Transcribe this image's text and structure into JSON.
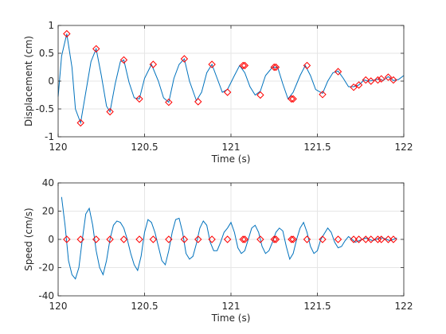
{
  "figure": {
    "background": "#ffffff"
  },
  "colors": {
    "signal": "#0072bd",
    "marker": "#ff0000",
    "grid": "#e6e6e6",
    "axis": "#262626"
  },
  "chart_data": [
    {
      "type": "line",
      "title": "",
      "xlabel": "Time (s)",
      "ylabel": "Displacement (cm)",
      "xlim": [
        120,
        122
      ],
      "ylim": [
        -1,
        1
      ],
      "xticks": [
        120,
        120.5,
        121,
        121.5,
        122
      ],
      "xtick_labels": [
        "120",
        "120.5",
        "121",
        "121.5",
        "122"
      ],
      "yticks": [
        -1,
        -0.5,
        0,
        0.5,
        1
      ],
      "ytick_labels": [
        "-1",
        "-0.5",
        "0",
        "0.5",
        "1"
      ],
      "grid": true,
      "series": [
        {
          "kind": "line",
          "x": [
            120.0,
            120.02,
            120.05,
            120.08,
            120.1,
            120.13,
            120.16,
            120.19,
            120.22,
            120.25,
            120.28,
            120.3,
            120.33,
            120.36,
            120.38,
            120.41,
            120.44,
            120.47,
            120.5,
            120.54,
            120.58,
            120.61,
            120.64,
            120.67,
            120.7,
            120.73,
            120.76,
            120.8,
            120.83,
            120.86,
            120.89,
            120.92,
            120.95,
            120.98,
            121.02,
            121.05,
            121.08,
            121.11,
            121.14,
            121.17,
            121.2,
            121.24,
            121.27,
            121.3,
            121.33,
            121.36,
            121.4,
            121.43,
            121.46,
            121.49,
            121.53,
            121.56,
            121.59,
            121.62,
            121.65,
            121.68,
            121.71,
            121.74,
            121.77,
            121.8,
            121.83,
            121.86,
            121.88,
            121.91,
            121.94,
            121.97,
            122.0
          ],
          "y": [
            -0.28,
            0.45,
            0.85,
            0.25,
            -0.5,
            -0.75,
            -0.2,
            0.35,
            0.58,
            0.1,
            -0.45,
            -0.55,
            -0.05,
            0.35,
            0.38,
            -0.02,
            -0.3,
            -0.32,
            0.05,
            0.3,
            0.0,
            -0.3,
            -0.38,
            0.05,
            0.3,
            0.4,
            0.0,
            -0.35,
            -0.2,
            0.15,
            0.3,
            0.05,
            -0.2,
            -0.15,
            0.1,
            0.28,
            0.15,
            -0.1,
            -0.25,
            -0.18,
            0.1,
            0.25,
            0.25,
            -0.05,
            -0.32,
            -0.2,
            0.1,
            0.28,
            0.1,
            -0.15,
            -0.22,
            0.0,
            0.15,
            0.18,
            0.05,
            -0.1,
            -0.1,
            -0.07,
            0.02,
            0.0,
            0.02,
            0.04,
            0.01,
            0.08,
            0.01,
            0.03,
            0.1
          ]
        },
        {
          "kind": "markers",
          "x": [
            120.05,
            120.13,
            120.22,
            120.3,
            120.38,
            120.47,
            120.55,
            120.64,
            120.73,
            120.81,
            120.89,
            120.98,
            121.07,
            121.08,
            121.17,
            121.25,
            121.26,
            121.35,
            121.36,
            121.44,
            121.53,
            121.62,
            121.71,
            121.74,
            121.78,
            121.81,
            121.85,
            121.87,
            121.91,
            121.94
          ],
          "y": [
            0.85,
            -0.75,
            0.58,
            -0.55,
            0.38,
            -0.32,
            0.3,
            -0.38,
            0.4,
            -0.37,
            0.3,
            -0.2,
            0.28,
            0.28,
            -0.25,
            0.25,
            0.25,
            -0.32,
            -0.32,
            0.28,
            -0.24,
            0.17,
            -0.11,
            -0.07,
            0.02,
            0.0,
            0.02,
            0.04,
            0.07,
            0.02
          ]
        }
      ]
    },
    {
      "type": "line",
      "title": "",
      "xlabel": "Time (s)",
      "ylabel": "Speed (cm/s)",
      "xlim": [
        120,
        122
      ],
      "ylim": [
        -40,
        40
      ],
      "xticks": [
        120,
        120.5,
        121,
        121.5,
        122
      ],
      "xtick_labels": [
        "120",
        "120.5",
        "121",
        "121.5",
        "122"
      ],
      "yticks": [
        -40,
        -20,
        0,
        20,
        40
      ],
      "ytick_labels": [
        "-40",
        "-20",
        "0",
        "20",
        "40"
      ],
      "grid": true,
      "series": [
        {
          "kind": "line",
          "x": [
            120.02,
            120.04,
            120.06,
            120.08,
            120.1,
            120.12,
            120.14,
            120.16,
            120.18,
            120.2,
            120.22,
            120.24,
            120.26,
            120.28,
            120.3,
            120.32,
            120.34,
            120.36,
            120.38,
            120.4,
            120.42,
            120.44,
            120.46,
            120.48,
            120.5,
            120.52,
            120.54,
            120.56,
            120.58,
            120.6,
            120.62,
            120.64,
            120.66,
            120.68,
            120.7,
            120.72,
            120.74,
            120.76,
            120.78,
            120.8,
            120.82,
            120.84,
            120.86,
            120.88,
            120.9,
            120.92,
            120.94,
            120.96,
            120.98,
            121.0,
            121.02,
            121.04,
            121.06,
            121.08,
            121.1,
            121.12,
            121.14,
            121.16,
            121.18,
            121.2,
            121.22,
            121.24,
            121.26,
            121.28,
            121.3,
            121.32,
            121.34,
            121.36,
            121.38,
            121.4,
            121.42,
            121.44,
            121.46,
            121.48,
            121.5,
            121.52,
            121.54,
            121.56,
            121.58,
            121.6,
            121.62,
            121.64,
            121.66,
            121.68,
            121.7,
            121.72,
            121.74,
            121.76,
            121.78,
            121.8,
            121.82,
            121.84,
            121.86,
            121.88,
            121.9,
            121.92,
            121.94,
            121.96
          ],
          "y": [
            30,
            10,
            -15,
            -25,
            -28,
            -20,
            0,
            18,
            22,
            10,
            -8,
            -20,
            -25,
            -15,
            0,
            10,
            13,
            12,
            8,
            0,
            -10,
            -18,
            -22,
            -12,
            5,
            14,
            12,
            5,
            -5,
            -15,
            -18,
            -8,
            5,
            14,
            15,
            5,
            -10,
            -14,
            -12,
            -3,
            8,
            13,
            10,
            -2,
            -8,
            -8,
            -2,
            5,
            8,
            12,
            5,
            -6,
            -10,
            -8,
            0,
            8,
            10,
            5,
            -5,
            -10,
            -8,
            -2,
            5,
            8,
            6,
            -5,
            -14,
            -10,
            0,
            8,
            12,
            5,
            -5,
            -10,
            -8,
            0,
            4,
            8,
            5,
            -2,
            -6,
            -5,
            -1,
            2,
            0,
            -2,
            -1,
            0,
            1,
            0,
            -1,
            0,
            1,
            1,
            0,
            -1,
            0,
            1
          ]
        },
        {
          "kind": "markers",
          "x": [
            120.05,
            120.13,
            120.22,
            120.3,
            120.38,
            120.47,
            120.55,
            120.64,
            120.73,
            120.81,
            120.89,
            120.98,
            121.07,
            121.08,
            121.17,
            121.25,
            121.26,
            121.35,
            121.36,
            121.44,
            121.53,
            121.62,
            121.71,
            121.74,
            121.78,
            121.81,
            121.85,
            121.87,
            121.91,
            121.94
          ],
          "y": [
            0,
            0,
            0,
            0,
            0,
            0,
            0,
            0,
            0,
            0,
            0,
            0,
            0,
            0,
            0,
            0,
            0,
            0,
            0,
            0,
            0,
            0,
            0,
            0,
            0,
            0,
            0,
            0,
            0,
            0
          ]
        }
      ]
    }
  ]
}
